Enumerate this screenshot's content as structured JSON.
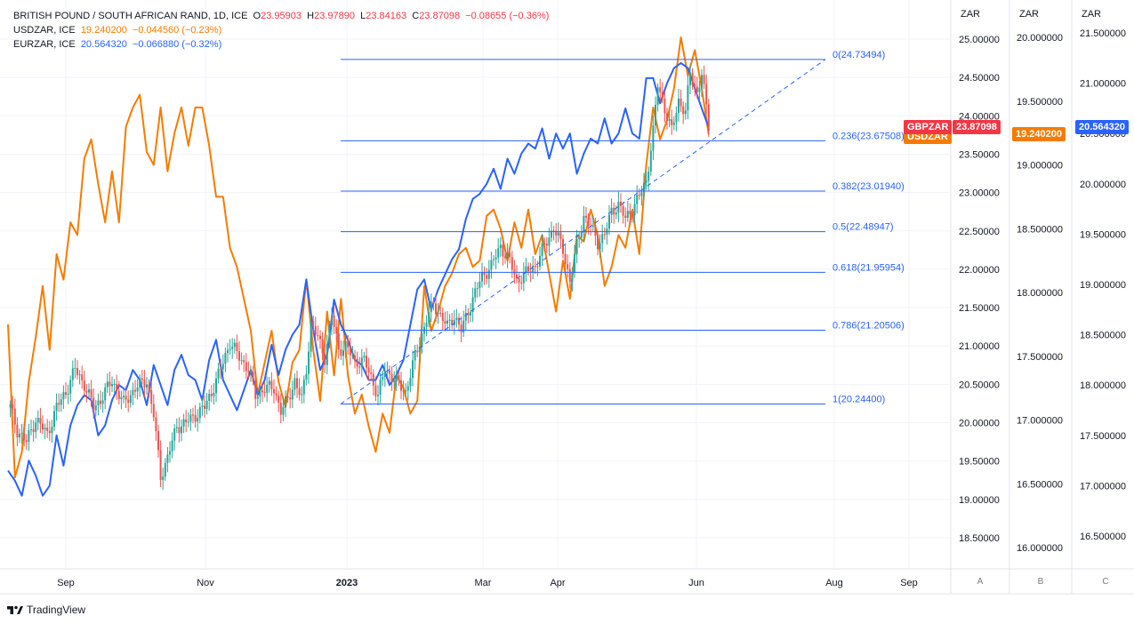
{
  "legend": {
    "main": {
      "title": "BRITISH POUND / SOUTH AFRICAN RAND, 1D, ICE",
      "o_label": "O",
      "o": "23.95903",
      "h_label": "H",
      "h": "23.97890",
      "l_label": "L",
      "l": "23.84163",
      "c_label": "C",
      "c": "23.87098",
      "change": "−0.08655 (−0.36%)"
    },
    "usdzar": {
      "title": "USDZAR, ICE",
      "value": "19.240200",
      "change": "−0.044560 (−0.23%)"
    },
    "eurzar": {
      "title": "EURZAR, ICE",
      "value": "20.564320",
      "change": "−0.066880 (−0.32%)"
    }
  },
  "axis_heads": {
    "a": "ZAR",
    "b": "ZAR",
    "c": "ZAR"
  },
  "badges": {
    "gbpzar_name": "GBPZAR",
    "gbpzar_value": "23.87098",
    "usdzar_name": "USDZAR",
    "usdzar_value": "19.240200",
    "eurzar_value": "20.564320"
  },
  "scale_buttons": {
    "a": "A",
    "b": "B",
    "c": "C"
  },
  "brand": {
    "name": "TradingView"
  },
  "colors": {
    "up": "#26a69a",
    "down": "#ef5350",
    "usdzar": "#f57c00",
    "eurzar": "#2962ff",
    "fib": "#2962ff",
    "grid": "#f0f3fa",
    "axis_text": "#131722",
    "badge_gbpzar": "#f23645"
  },
  "chart_data": {
    "type": "candlestick",
    "symbol": "GBPZAR",
    "x_ticks": [
      "Sep",
      "Nov",
      "2023",
      "Mar",
      "Apr",
      "Jun",
      "Aug",
      "Sep"
    ],
    "axis_a": {
      "label": "ZAR",
      "ylim": [
        18.2,
        25.3
      ],
      "ticks": [
        "25.00000",
        "24.50000",
        "24.00000",
        "23.50000",
        "23.00000",
        "22.50000",
        "22.00000",
        "21.50000",
        "21.00000",
        "20.50000",
        "20.00000",
        "19.50000",
        "19.00000",
        "18.50000"
      ]
    },
    "axis_b": {
      "label": "ZAR",
      "ylim": [
        15.9,
        20.2
      ],
      "ticks": [
        "20.000000",
        "19.500000",
        "19.000000",
        "18.500000",
        "18.000000",
        "17.500000",
        "17.000000",
        "16.500000",
        "16.000000"
      ]
    },
    "axis_c": {
      "label": "ZAR",
      "ticks": [
        "21.500000",
        "21.000000",
        "20.500000",
        "20.000000",
        "19.500000",
        "19.000000",
        "18.500000",
        "18.000000",
        "17.500000",
        "17.000000",
        "16.500000"
      ]
    },
    "gbpzar_anchors": [
      [
        1,
        20.2
      ],
      [
        4,
        19.9
      ],
      [
        8,
        19.75
      ],
      [
        12,
        20.05
      ],
      [
        17,
        19.85
      ],
      [
        21,
        20.2
      ],
      [
        25,
        20.4
      ],
      [
        29,
        20.7
      ],
      [
        33,
        20.5
      ],
      [
        37,
        20.2
      ],
      [
        40,
        20.3
      ],
      [
        45,
        20.55
      ],
      [
        50,
        20.25
      ],
      [
        55,
        20.45
      ],
      [
        60,
        20.55
      ],
      [
        63,
        20.1
      ],
      [
        66,
        19.3
      ],
      [
        69,
        19.55
      ],
      [
        73,
        19.95
      ],
      [
        77,
        20.0
      ],
      [
        81,
        20.1
      ],
      [
        85,
        20.2
      ],
      [
        88,
        20.4
      ],
      [
        92,
        20.7
      ],
      [
        96,
        21.05
      ],
      [
        100,
        20.85
      ],
      [
        104,
        20.7
      ],
      [
        107,
        20.35
      ],
      [
        111,
        20.45
      ],
      [
        115,
        20.45
      ],
      [
        118,
        20.15
      ],
      [
        121,
        20.3
      ],
      [
        124,
        20.55
      ],
      [
        127,
        20.3
      ],
      [
        129,
        20.7
      ],
      [
        131,
        21.3
      ],
      [
        134,
        21.1
      ],
      [
        137,
        20.85
      ],
      [
        140,
        21.4
      ],
      [
        143,
        20.95
      ],
      [
        146,
        21.0
      ],
      [
        150,
        20.8
      ],
      [
        154,
        20.8
      ],
      [
        157,
        20.6
      ],
      [
        160,
        20.35
      ],
      [
        163,
        20.7
      ],
      [
        166,
        20.6
      ],
      [
        169,
        20.5
      ],
      [
        172,
        20.4
      ],
      [
        175,
        20.75
      ],
      [
        178,
        21.05
      ],
      [
        181,
        21.35
      ],
      [
        184,
        21.55
      ],
      [
        187,
        21.4
      ],
      [
        190,
        21.25
      ],
      [
        193,
        21.4
      ],
      [
        196,
        21.2
      ],
      [
        199,
        21.45
      ],
      [
        202,
        21.7
      ],
      [
        205,
        21.9
      ],
      [
        209,
        22.05
      ],
      [
        213,
        22.3
      ],
      [
        217,
        22.1
      ],
      [
        220,
        21.85
      ],
      [
        224,
        21.95
      ],
      [
        228,
        22.05
      ],
      [
        232,
        22.3
      ],
      [
        236,
        22.55
      ],
      [
        240,
        22.25
      ],
      [
        243,
        21.85
      ],
      [
        246,
        22.3
      ],
      [
        249,
        22.7
      ],
      [
        252,
        22.55
      ],
      [
        255,
        22.35
      ],
      [
        258,
        22.45
      ],
      [
        261,
        22.75
      ],
      [
        264,
        22.85
      ],
      [
        267,
        22.65
      ],
      [
        270,
        22.8
      ],
      [
        273,
        22.95
      ],
      [
        276,
        23.15
      ],
      [
        279,
        23.8
      ],
      [
        281,
        24.4
      ],
      [
        284,
        24.1
      ],
      [
        287,
        23.8
      ],
      [
        290,
        24.2
      ],
      [
        293,
        24.05
      ],
      [
        295,
        24.55
      ],
      [
        298,
        24.3
      ],
      [
        300,
        24.55
      ],
      [
        303,
        23.87
      ]
    ],
    "usdzar_anchors": [
      [
        0,
        17.75
      ],
      [
        3,
        16.55
      ],
      [
        6,
        16.75
      ],
      [
        9,
        17.3
      ],
      [
        12,
        17.65
      ],
      [
        15,
        18.05
      ],
      [
        18,
        17.55
      ],
      [
        21,
        18.3
      ],
      [
        24,
        18.1
      ],
      [
        27,
        18.55
      ],
      [
        30,
        18.45
      ],
      [
        33,
        19.05
      ],
      [
        36,
        19.2
      ],
      [
        39,
        18.85
      ],
      [
        42,
        18.55
      ],
      [
        45,
        18.95
      ],
      [
        48,
        18.55
      ],
      [
        51,
        19.3
      ],
      [
        54,
        19.45
      ],
      [
        57,
        19.55
      ],
      [
        60,
        19.1
      ],
      [
        63,
        19.0
      ],
      [
        66,
        19.45
      ],
      [
        69,
        18.95
      ],
      [
        72,
        19.25
      ],
      [
        75,
        19.45
      ],
      [
        78,
        19.15
      ],
      [
        81,
        19.45
      ],
      [
        84,
        19.45
      ],
      [
        87,
        19.15
      ],
      [
        90,
        18.75
      ],
      [
        93,
        18.75
      ],
      [
        96,
        18.35
      ],
      [
        99,
        18.2
      ],
      [
        102,
        17.95
      ],
      [
        105,
        17.7
      ],
      [
        108,
        17.2
      ],
      [
        111,
        17.45
      ],
      [
        114,
        17.7
      ],
      [
        117,
        17.3
      ],
      [
        120,
        17.1
      ],
      [
        123,
        17.45
      ],
      [
        126,
        17.55
      ],
      [
        129,
        18.1
      ],
      [
        132,
        17.55
      ],
      [
        135,
        17.15
      ],
      [
        138,
        17.85
      ],
      [
        141,
        17.35
      ],
      [
        144,
        17.95
      ],
      [
        147,
        17.35
      ],
      [
        150,
        17.05
      ],
      [
        153,
        17.2
      ],
      [
        156,
        16.95
      ],
      [
        159,
        16.75
      ],
      [
        162,
        17.05
      ],
      [
        165,
        16.9
      ],
      [
        168,
        17.35
      ],
      [
        171,
        17.25
      ],
      [
        174,
        17.05
      ],
      [
        177,
        17.15
      ],
      [
        180,
        18.05
      ],
      [
        183,
        17.7
      ],
      [
        186,
        17.85
      ],
      [
        189,
        18.05
      ],
      [
        192,
        18.15
      ],
      [
        195,
        18.3
      ],
      [
        198,
        18.35
      ],
      [
        201,
        18.2
      ],
      [
        204,
        18.25
      ],
      [
        207,
        18.6
      ],
      [
        210,
        18.65
      ],
      [
        213,
        18.5
      ],
      [
        216,
        18.25
      ],
      [
        219,
        18.55
      ],
      [
        222,
        18.35
      ],
      [
        225,
        18.65
      ],
      [
        228,
        18.3
      ],
      [
        231,
        18.45
      ],
      [
        234,
        18.15
      ],
      [
        237,
        17.85
      ],
      [
        240,
        18.25
      ],
      [
        243,
        17.95
      ],
      [
        246,
        18.45
      ],
      [
        249,
        18.4
      ],
      [
        252,
        18.65
      ],
      [
        255,
        18.45
      ],
      [
        258,
        18.05
      ],
      [
        261,
        18.2
      ],
      [
        264,
        18.45
      ],
      [
        267,
        18.35
      ],
      [
        270,
        18.65
      ],
      [
        273,
        18.3
      ],
      [
        276,
        19.0
      ],
      [
        279,
        19.45
      ],
      [
        282,
        19.2
      ],
      [
        285,
        19.35
      ],
      [
        288,
        19.6
      ],
      [
        291,
        20.0
      ],
      [
        294,
        19.7
      ],
      [
        297,
        19.9
      ],
      [
        300,
        19.6
      ],
      [
        303,
        19.24
      ]
    ],
    "eurzar_anchors": [
      [
        0,
        17.15
      ],
      [
        3,
        17.05
      ],
      [
        6,
        16.9
      ],
      [
        9,
        17.25
      ],
      [
        12,
        17.1
      ],
      [
        15,
        16.9
      ],
      [
        18,
        17.0
      ],
      [
        21,
        17.5
      ],
      [
        24,
        17.2
      ],
      [
        27,
        17.6
      ],
      [
        30,
        17.8
      ],
      [
        33,
        17.9
      ],
      [
        36,
        17.85
      ],
      [
        39,
        17.5
      ],
      [
        42,
        17.6
      ],
      [
        45,
        17.85
      ],
      [
        48,
        18.0
      ],
      [
        51,
        17.95
      ],
      [
        54,
        18.15
      ],
      [
        57,
        18.05
      ],
      [
        60,
        17.8
      ],
      [
        63,
        18.2
      ],
      [
        66,
        18.0
      ],
      [
        69,
        17.8
      ],
      [
        72,
        18.15
      ],
      [
        75,
        18.3
      ],
      [
        78,
        18.1
      ],
      [
        81,
        18.05
      ],
      [
        84,
        17.85
      ],
      [
        87,
        18.25
      ],
      [
        90,
        18.45
      ],
      [
        93,
        18.05
      ],
      [
        96,
        17.9
      ],
      [
        99,
        17.75
      ],
      [
        102,
        17.95
      ],
      [
        105,
        18.15
      ],
      [
        108,
        17.9
      ],
      [
        111,
        18.05
      ],
      [
        114,
        18.4
      ],
      [
        117,
        18.1
      ],
      [
        120,
        18.35
      ],
      [
        123,
        18.5
      ],
      [
        126,
        18.6
      ],
      [
        129,
        19.05
      ],
      [
        132,
        18.55
      ],
      [
        135,
        18.15
      ],
      [
        138,
        18.3
      ],
      [
        141,
        18.85
      ],
      [
        144,
        18.6
      ],
      [
        147,
        18.45
      ],
      [
        150,
        18.25
      ],
      [
        153,
        18.2
      ],
      [
        156,
        18.05
      ],
      [
        159,
        18.05
      ],
      [
        162,
        18.2
      ],
      [
        165,
        18.0
      ],
      [
        168,
        18.1
      ],
      [
        171,
        18.25
      ],
      [
        174,
        18.6
      ],
      [
        177,
        18.95
      ],
      [
        180,
        19.05
      ],
      [
        183,
        18.75
      ],
      [
        186,
        18.95
      ],
      [
        189,
        19.1
      ],
      [
        192,
        19.25
      ],
      [
        195,
        19.35
      ],
      [
        198,
        19.65
      ],
      [
        201,
        19.85
      ],
      [
        204,
        19.9
      ],
      [
        207,
        20.0
      ],
      [
        210,
        20.15
      ],
      [
        213,
        19.95
      ],
      [
        216,
        20.25
      ],
      [
        219,
        20.1
      ],
      [
        222,
        20.3
      ],
      [
        225,
        20.4
      ],
      [
        228,
        20.35
      ],
      [
        231,
        20.55
      ],
      [
        234,
        20.25
      ],
      [
        237,
        20.5
      ],
      [
        240,
        20.35
      ],
      [
        243,
        20.5
      ],
      [
        246,
        20.1
      ],
      [
        249,
        20.3
      ],
      [
        252,
        20.45
      ],
      [
        255,
        20.4
      ],
      [
        258,
        20.65
      ],
      [
        261,
        20.4
      ],
      [
        264,
        20.5
      ],
      [
        267,
        20.75
      ],
      [
        270,
        20.5
      ],
      [
        273,
        20.45
      ],
      [
        276,
        21.05
      ],
      [
        279,
        21.05
      ],
      [
        282,
        20.8
      ],
      [
        285,
        21.0
      ],
      [
        288,
        21.15
      ],
      [
        291,
        21.2
      ],
      [
        294,
        21.15
      ],
      [
        297,
        20.95
      ],
      [
        300,
        20.75
      ],
      [
        303,
        20.56
      ]
    ],
    "fib_levels": [
      {
        "label": "0(24.73494)",
        "value": 24.73494
      },
      {
        "label": "0.236(23.67508)",
        "value": 23.67508
      },
      {
        "label": "0.382(23.01940)",
        "value": 23.0194
      },
      {
        "label": "0.5(22.48947)",
        "value": 22.48947
      },
      {
        "label": "0.618(21.95954)",
        "value": 21.95954
      },
      {
        "label": "0.786(21.20506)",
        "value": 21.20506
      },
      {
        "label": "1(20.24400)",
        "value": 20.244
      }
    ],
    "trendline": {
      "from": [
        0.3,
        20.244
      ],
      "to": [
        0.74,
        24.73494
      ]
    }
  }
}
